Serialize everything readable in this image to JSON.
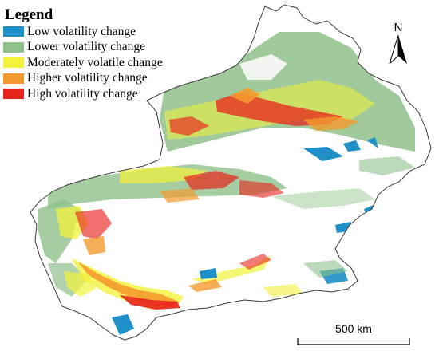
{
  "legend": {
    "title": "Legend",
    "items": [
      {
        "label": "Low volatility change",
        "color": "#1e8fc8"
      },
      {
        "label": "Lower volatility change",
        "color": "#8fc18a"
      },
      {
        "label": "Moderately volatile change",
        "color": "#f2f23a"
      },
      {
        "label": "Higher volatility change",
        "color": "#f59a2e"
      },
      {
        "label": "High volatility change",
        "color": "#e8231b"
      }
    ]
  },
  "north_arrow": {
    "label": "N"
  },
  "scale_bar": {
    "label": "500 km"
  },
  "colors": {
    "boundary": "#3a3a3a",
    "land": "#ffffff"
  }
}
